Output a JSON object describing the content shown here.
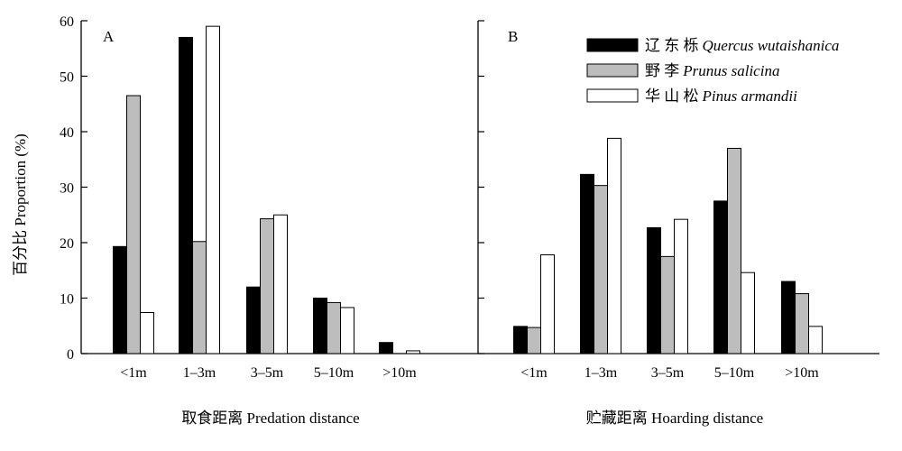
{
  "figure": {
    "ylabel": "百分比 Proportion (%)",
    "legend": [
      {
        "chinese": "辽 东 栎",
        "scientific": "Quercus wutaishanica",
        "color": "#000000"
      },
      {
        "chinese": "野 李",
        "scientific": "Prunus salicina",
        "color": "#bdbdbd"
      },
      {
        "chinese": "华 山 松",
        "scientific": "Pinus armandii",
        "color": "#ffffff"
      }
    ]
  },
  "chart_data": [
    {
      "type": "bar",
      "panel": "A",
      "xlabel": "取食距离 Predation distance",
      "ylabel": "百分比 Proportion (%)",
      "categories": [
        "<1m",
        "1–3m",
        "3–5m",
        "5–10m",
        ">10m"
      ],
      "ylim": [
        0,
        60
      ],
      "yticks": [
        0,
        10,
        20,
        30,
        40,
        50,
        60
      ],
      "series": [
        {
          "name": "辽东栎 Quercus wutaishanica",
          "color": "#000000",
          "values": [
            19.3,
            57.0,
            12.0,
            10.0,
            2.0
          ]
        },
        {
          "name": "野李 Prunus salicina",
          "color": "#bdbdbd",
          "values": [
            46.5,
            20.2,
            24.3,
            9.2,
            0.0
          ]
        },
        {
          "name": "华山松 Pinus armandii",
          "color": "#ffffff",
          "values": [
            7.4,
            59.0,
            25.0,
            8.3,
            0.5
          ]
        }
      ]
    },
    {
      "type": "bar",
      "panel": "B",
      "xlabel": "贮藏距离 Hoarding distance",
      "ylabel": "百分比 Proportion (%)",
      "categories": [
        "<1m",
        "1–3m",
        "3–5m",
        "5–10m",
        ">10m"
      ],
      "ylim": [
        0,
        60
      ],
      "yticks": [
        0,
        10,
        20,
        30,
        40,
        50,
        60
      ],
      "series": [
        {
          "name": "辽东栎 Quercus wutaishanica",
          "color": "#000000",
          "values": [
            4.9,
            32.3,
            22.7,
            27.5,
            13.0
          ]
        },
        {
          "name": "野李 Prunus salicina",
          "color": "#bdbdbd",
          "values": [
            4.7,
            30.3,
            17.5,
            37.0,
            10.8
          ]
        },
        {
          "name": "华山松 Pinus armandii",
          "color": "#ffffff",
          "values": [
            17.8,
            38.8,
            24.2,
            14.6,
            4.9
          ]
        }
      ]
    }
  ]
}
